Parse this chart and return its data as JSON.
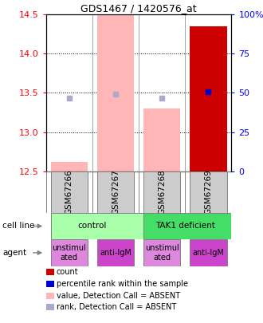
{
  "title": "GDS1467 / 1420576_at",
  "samples": [
    "GSM67266",
    "GSM67267",
    "GSM67268",
    "GSM67269"
  ],
  "ylim": [
    12.5,
    14.5
  ],
  "yticks_left": [
    12.5,
    13.0,
    13.5,
    14.0,
    14.5
  ],
  "yticks_right": [
    0,
    25,
    50,
    75,
    100
  ],
  "ytick_right_labels": [
    "0",
    "25",
    "50",
    "75",
    "100%"
  ],
  "bar_values": [
    12.62,
    14.5,
    13.3,
    14.35
  ],
  "bar_colors": [
    "#ffb6b6",
    "#ffb6b6",
    "#ffb6b6",
    "#cc0000"
  ],
  "bar_bottom": [
    12.5,
    12.5,
    12.5,
    12.5
  ],
  "rank_markers": [
    13.43,
    13.48,
    13.43,
    13.51
  ],
  "rank_colors": [
    "#aaaacc",
    "#aaaacc",
    "#aaaacc",
    "#0000cc"
  ],
  "cell_line_labels": [
    "control",
    "TAK1 deficient"
  ],
  "cell_line_spans": [
    [
      0,
      2
    ],
    [
      2,
      4
    ]
  ],
  "cell_line_colors": [
    "#aaffaa",
    "#44dd66"
  ],
  "agent_labels": [
    "unstimul\nated",
    "anti-IgM",
    "unstimul\nated",
    "anti-IgM"
  ],
  "agent_colors_light": "#dd88dd",
  "agent_colors_dark": "#cc44cc",
  "agent_color_map": [
    0,
    1,
    0,
    1
  ],
  "legend_items": [
    {
      "label": "count",
      "color": "#cc0000"
    },
    {
      "label": "percentile rank within the sample",
      "color": "#0000cc"
    },
    {
      "label": "value, Detection Call = ABSENT",
      "color": "#ffb6b6"
    },
    {
      "label": "rank, Detection Call = ABSENT",
      "color": "#aaaacc"
    }
  ],
  "bar_width": 0.8,
  "rank_marker_size": 5,
  "sample_box_color": "#cccccc",
  "grid_color": "#000000",
  "title_fontsize": 9,
  "axis_fontsize": 8,
  "label_fontsize": 7.5,
  "legend_fontsize": 7
}
